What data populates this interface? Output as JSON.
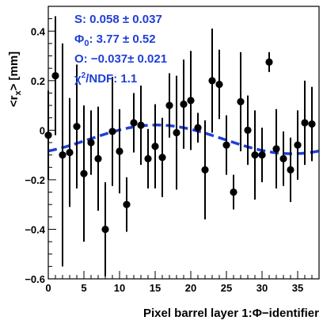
{
  "chart_data": {
    "type": "scatter",
    "xlabel_prefix": "Pixel barrel layer 1:",
    "xlabel_symbol": "Φ",
    "xlabel_suffix": "−identifier",
    "ylabel": "<r",
    "ylabel_sub": "x",
    "ylabel_suffix": "> [mm]",
    "xlim": [
      0,
      38
    ],
    "ylim": [
      -0.6,
      0.5
    ],
    "xticks": [
      0,
      5,
      10,
      15,
      20,
      25,
      30,
      35
    ],
    "yticks": [
      -0.6,
      -0.4,
      -0.2,
      0,
      0.2,
      0.4
    ],
    "ytick_labels": [
      "−0.6",
      "−0.4",
      "−0.2",
      "0",
      "0.2",
      "0.4"
    ],
    "points": [
      {
        "x": 0,
        "y": -0.02,
        "err": 0.18
      },
      {
        "x": 1,
        "y": 0.22,
        "err": 0.24
      },
      {
        "x": 2,
        "y": -0.1,
        "err": 0.45
      },
      {
        "x": 3,
        "y": -0.09,
        "err": 0.22
      },
      {
        "x": 4,
        "y": 0.015,
        "err": 0.25
      },
      {
        "x": 5,
        "y": -0.175,
        "err": 0.275
      },
      {
        "x": 6,
        "y": -0.05,
        "err": 0.13
      },
      {
        "x": 7,
        "y": -0.115,
        "err": 0.21
      },
      {
        "x": 8,
        "y": -0.4,
        "err": 0.19
      },
      {
        "x": 9,
        "y": -0.005,
        "err": 0.22
      },
      {
        "x": 10,
        "y": -0.085,
        "err": 0.17
      },
      {
        "x": 11,
        "y": -0.3,
        "err": 0.11
      },
      {
        "x": 12,
        "y": 0.03,
        "err": 0.12
      },
      {
        "x": 13,
        "y": 0.02,
        "err": 0.16
      },
      {
        "x": 14,
        "y": -0.115,
        "err": 0.12
      },
      {
        "x": 15,
        "y": -0.065,
        "err": 0.17
      },
      {
        "x": 16,
        "y": -0.11,
        "err": 0.16
      },
      {
        "x": 17,
        "y": 0.1,
        "err": 0.13
      },
      {
        "x": 18,
        "y": -0.01,
        "err": 0.23
      },
      {
        "x": 19,
        "y": 0.105,
        "err": 0.18
      },
      {
        "x": 20,
        "y": 0.12,
        "err": 0.2
      },
      {
        "x": 21,
        "y": 0.01,
        "err": 0.06
      },
      {
        "x": 22,
        "y": -0.16,
        "err": 0.2
      },
      {
        "x": 23,
        "y": 0.2,
        "err": 0.21
      },
      {
        "x": 24,
        "y": 0.185,
        "err": 0.14
      },
      {
        "x": 25,
        "y": -0.06,
        "err": 0.12
      },
      {
        "x": 26,
        "y": -0.25,
        "err": 0.07
      },
      {
        "x": 27,
        "y": 0.115,
        "err": 0.2
      },
      {
        "x": 28,
        "y": 0.0,
        "err": 0.14
      },
      {
        "x": 29,
        "y": -0.1,
        "err": 0.18
      },
      {
        "x": 30,
        "y": -0.1,
        "err": 0.11
      },
      {
        "x": 31,
        "y": 0.275,
        "err": 0.04
      },
      {
        "x": 32,
        "y": -0.075,
        "err": 0.16
      },
      {
        "x": 33,
        "y": -0.115,
        "err": 0.11
      },
      {
        "x": 34,
        "y": -0.16,
        "err": 0.13
      },
      {
        "x": 35,
        "y": -0.06,
        "err": 0.14
      },
      {
        "x": 36,
        "y": 0.03,
        "err": 0.17
      },
      {
        "x": 37,
        "y": 0.025,
        "err": 0.15
      }
    ],
    "fit": {
      "function": "sinusoid",
      "S": 0.058,
      "Phi0": 3.77,
      "O": -0.037,
      "period_bins": 38,
      "color": "#1f3fd6"
    },
    "fit_labels": {
      "S": "S:  0.058 ± 0.037",
      "Phi0_symbol": "Φ",
      "Phi0_sub": "0",
      "Phi0_value": ": 3.77 ± 0.52",
      "O": "O: −0.037± 0.021",
      "chi2_symbol": "χ",
      "chi2_sup": "2",
      "chi2_value": "/NDF: 1.1"
    },
    "grid": false,
    "legend": "top-left"
  }
}
